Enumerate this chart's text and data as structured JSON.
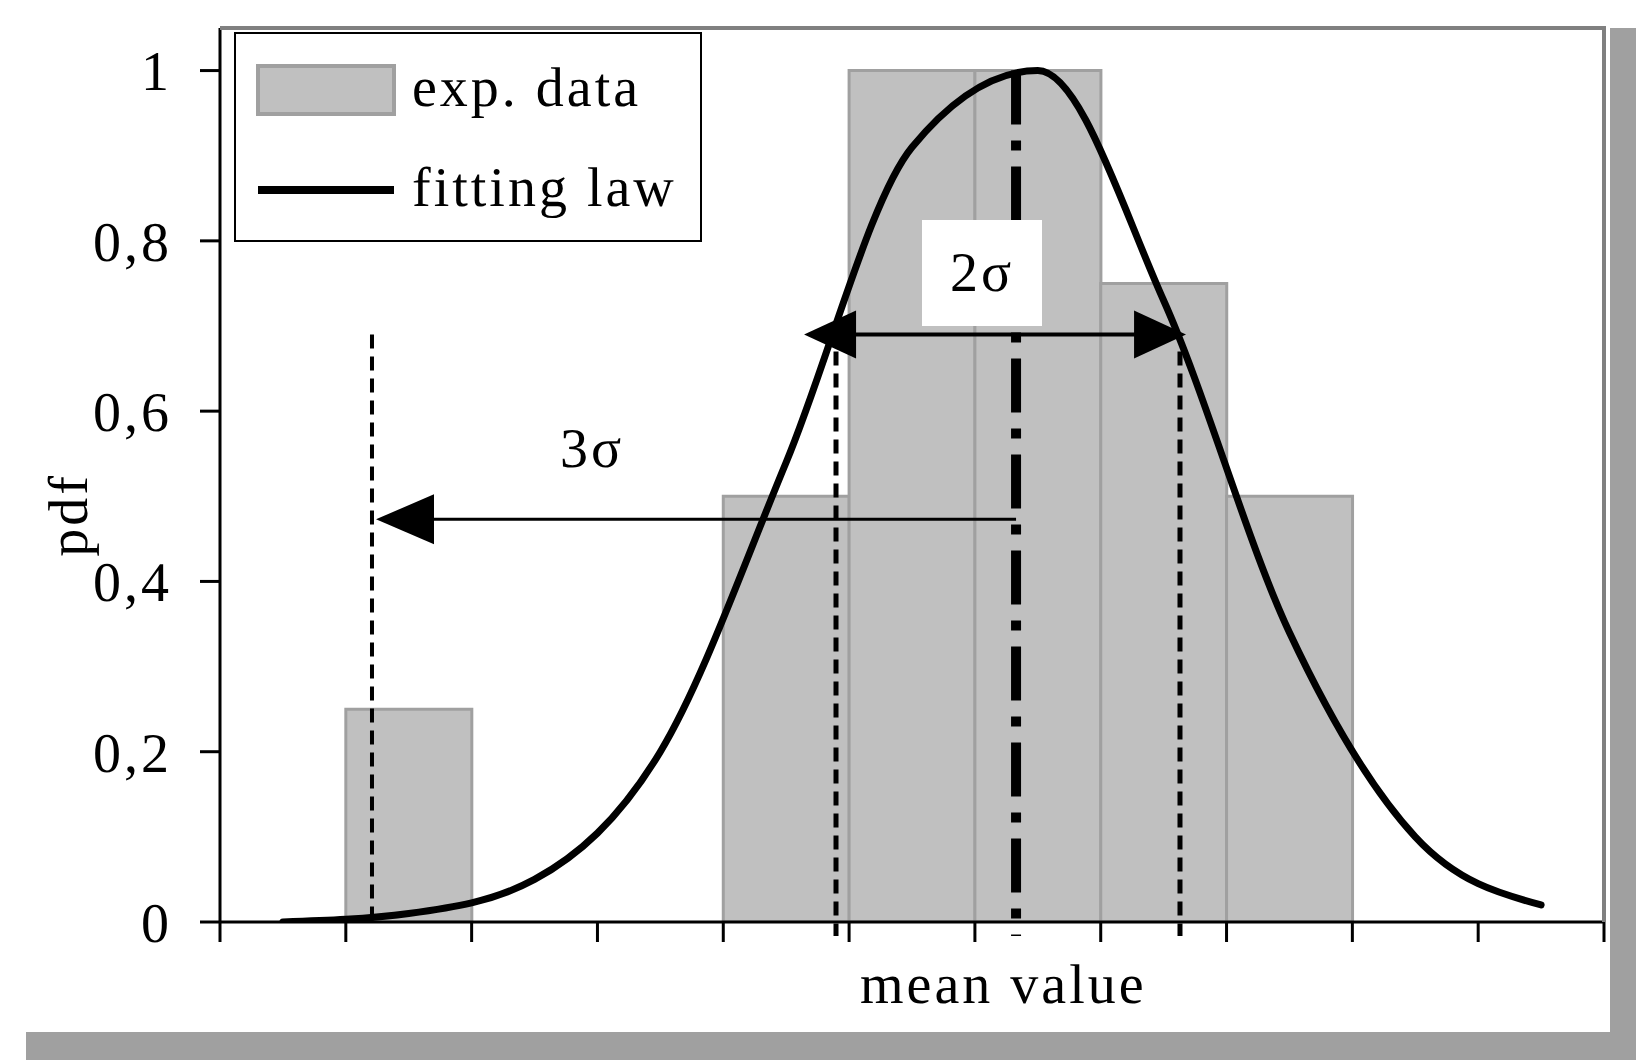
{
  "chart_data": {
    "type": "bar",
    "xlabel": "mean value",
    "ylabel": "pdf",
    "categories": [
      null,
      null,
      null,
      null,
      null,
      null,
      null,
      null,
      null,
      null,
      null
    ],
    "series": [
      {
        "name": "exp. data",
        "color": "#c0c0c0",
        "values": [
          null,
          0.25,
          null,
          null,
          0.5,
          1,
          1,
          0.75,
          0.5,
          null,
          null
        ]
      },
      {
        "name": "fitting law",
        "type": "line",
        "color": "#000000",
        "values": [
          0,
          0.01,
          0.05,
          0.2,
          0.54,
          0.91,
          1.0,
          0.73,
          0.34,
          0.1,
          0.02
        ]
      }
    ],
    "ylim": [
      0,
      1.05
    ],
    "yticks": [
      0,
      {
        "value": 0.2,
        "label": "0,2"
      },
      {
        "value": 0.4,
        "label": "0,4"
      },
      {
        "value": 0.6,
        "label": "0,6"
      },
      {
        "value": 0.8,
        "label": "0,8"
      },
      1
    ],
    "legend": "top left",
    "marker": "none",
    "line_style": "solid",
    "annotations": [
      "2σ",
      "3σ"
    ]
  }
}
